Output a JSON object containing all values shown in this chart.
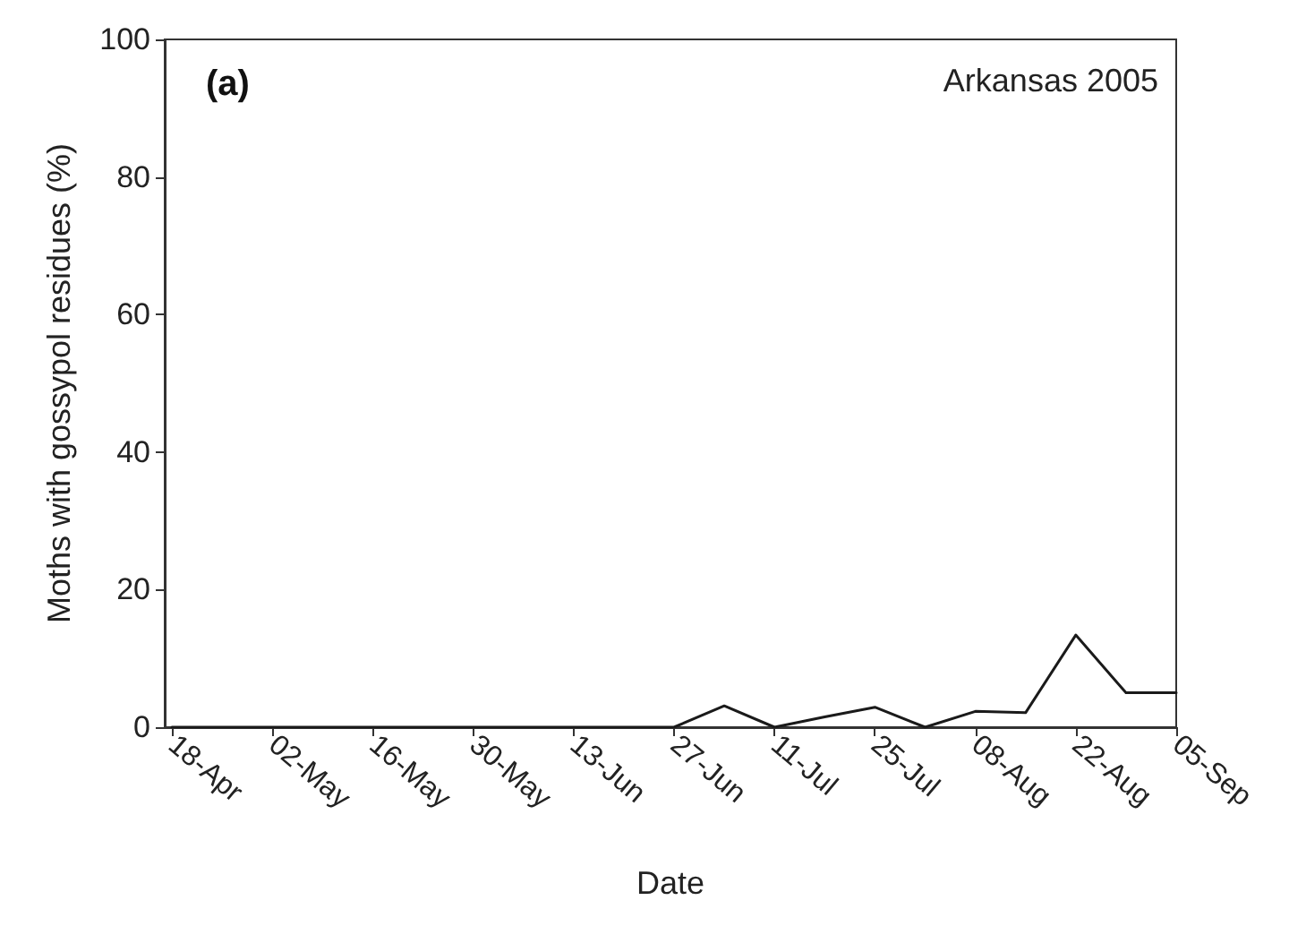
{
  "chart_data": {
    "type": "line",
    "title": "(a)",
    "annotations": [
      "Arkansas 2005"
    ],
    "xlabel": "Date",
    "ylabel": "Moths with gossypol residues (%)",
    "x": [
      "2005-04-18",
      "2005-04-25",
      "2005-05-02",
      "2005-05-09",
      "2005-05-16",
      "2005-05-23",
      "2005-05-30",
      "2005-06-06",
      "2005-06-13",
      "2005-06-20",
      "2005-06-27",
      "2005-07-04",
      "2005-07-11",
      "2005-07-18",
      "2005-07-25",
      "2005-08-01",
      "2005-08-08",
      "2005-08-15",
      "2005-08-22",
      "2005-08-29",
      "2005-09-05"
    ],
    "series": [
      {
        "color": "#1a1a1a",
        "values": [
          0,
          0,
          0,
          0,
          0,
          0,
          0,
          0,
          0,
          0,
          0,
          3.1,
          0,
          1.5,
          2.9,
          0,
          2.3,
          2.1,
          13.4,
          5,
          5
        ]
      }
    ],
    "xlim": [
      "2005-04-17",
      "2005-09-05"
    ],
    "xticks": [
      {
        "value": "2005-04-18",
        "label": "18-Apr"
      },
      {
        "value": "2005-05-02",
        "label": "02-May"
      },
      {
        "value": "2005-05-16",
        "label": "16-May"
      },
      {
        "value": "2005-05-30",
        "label": "30-May"
      },
      {
        "value": "2005-06-13",
        "label": "13-Jun"
      },
      {
        "value": "2005-06-27",
        "label": "27-Jun"
      },
      {
        "value": "2005-07-11",
        "label": "11-Jul"
      },
      {
        "value": "2005-07-25",
        "label": "25-Jul"
      },
      {
        "value": "2005-08-08",
        "label": "08-Aug"
      },
      {
        "value": "2005-08-22",
        "label": "22-Aug"
      },
      {
        "value": "2005-09-05",
        "label": "05-Sep"
      }
    ],
    "ylim": [
      0,
      100
    ],
    "yticks": [
      0,
      20,
      40,
      60,
      80,
      100
    ],
    "grid": false,
    "marker": "none",
    "line_style": "solid"
  }
}
